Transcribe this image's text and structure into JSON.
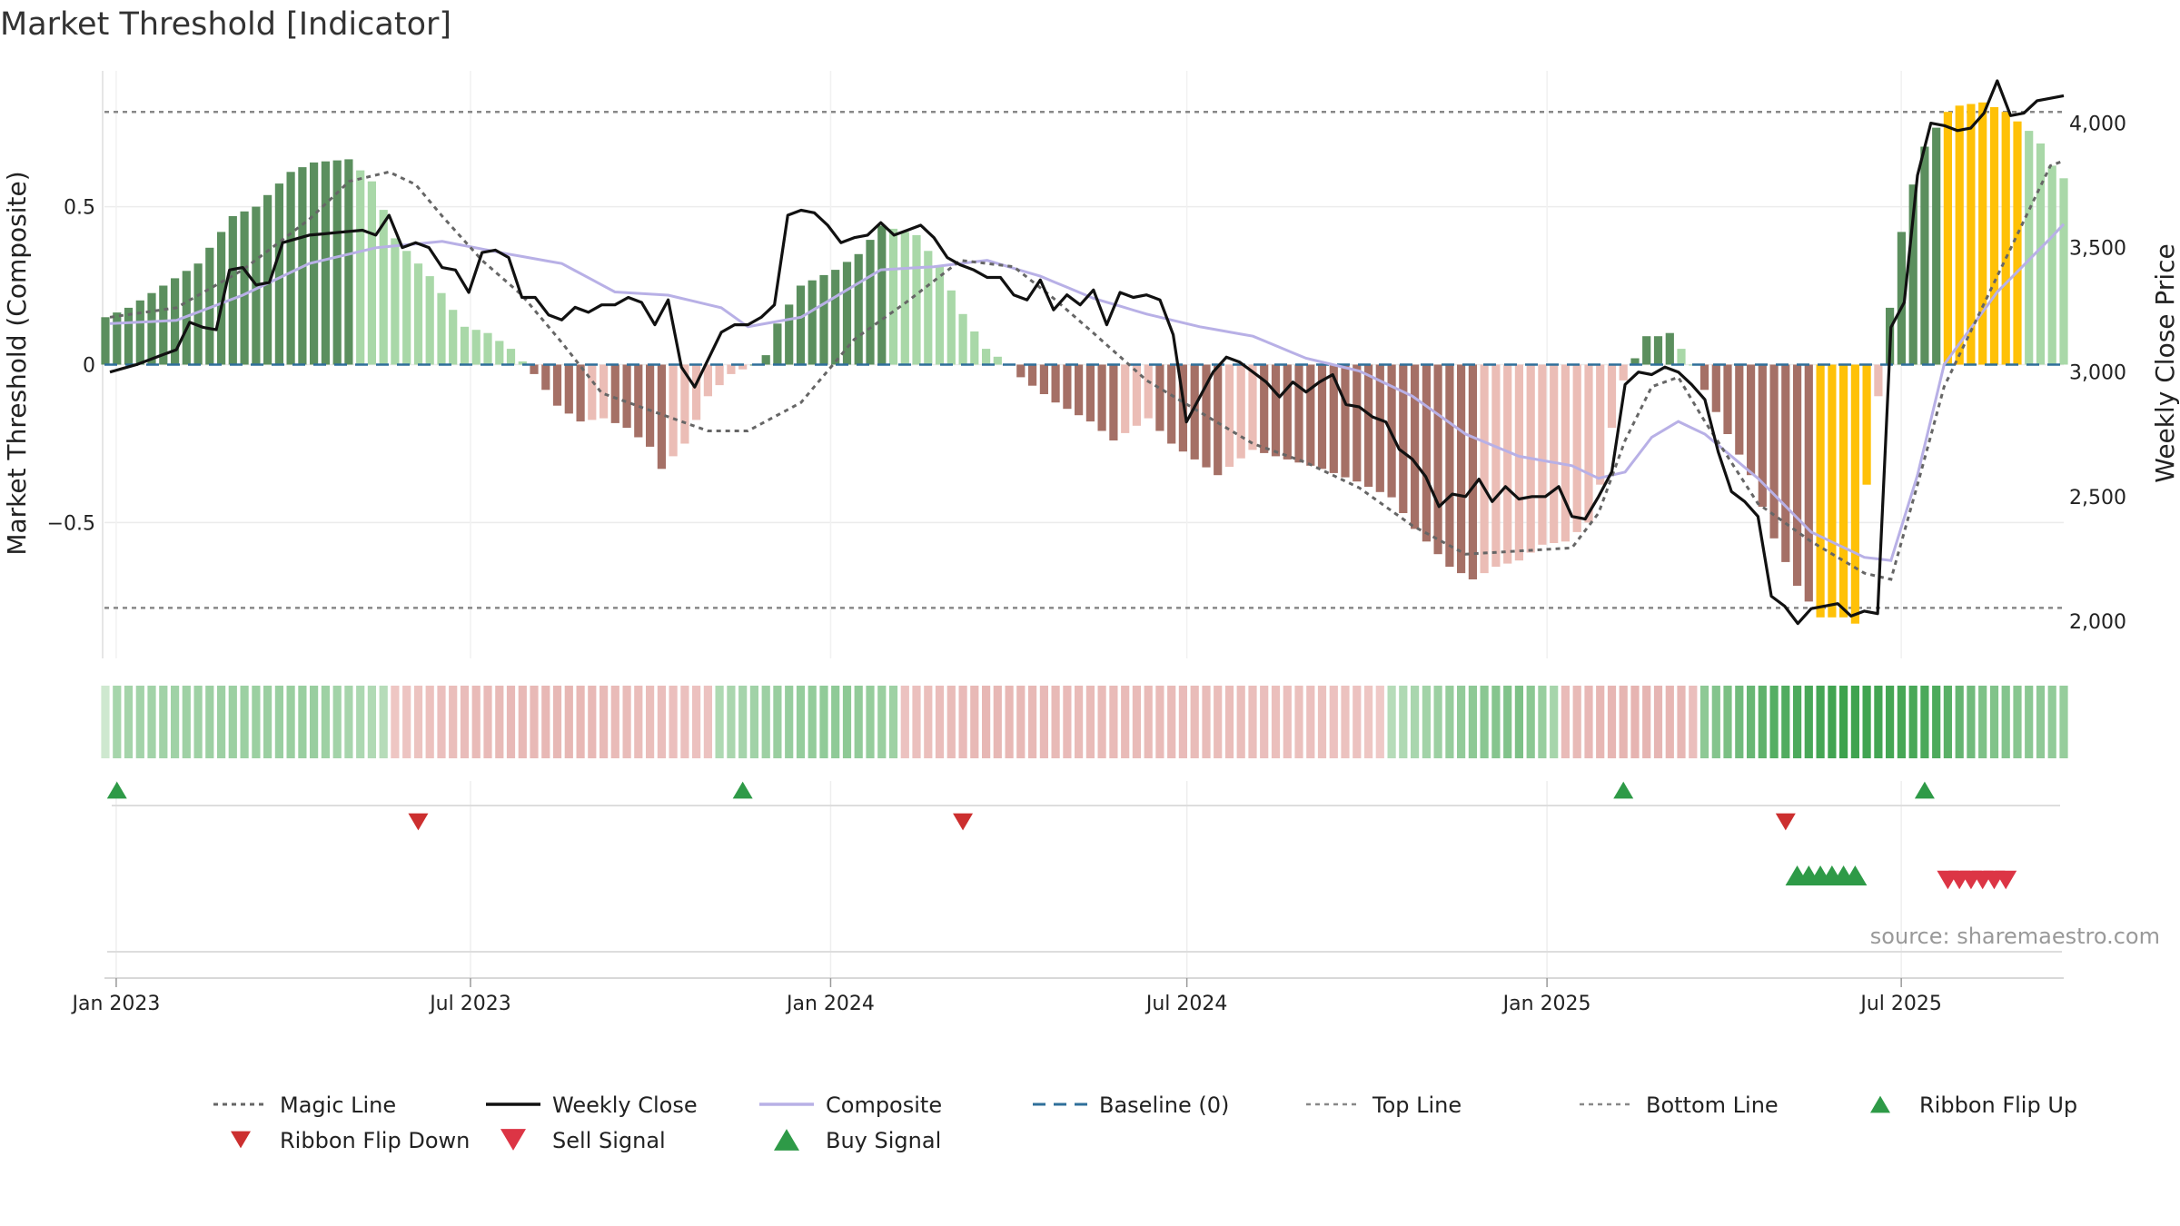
{
  "chart_data": {
    "type": "bar",
    "title": "Market Threshold [Indicator]",
    "ylabel_left": "Market Threshold (Composite)",
    "ylabel_right": "Weekly Close Price",
    "source": "source: sharemaestro.com",
    "ylim_left": [
      -0.93,
      0.93
    ],
    "ylim_right": [
      1850,
      4210
    ],
    "y_ticks_left": [
      {
        "v": 0.5,
        "label": "0.5"
      },
      {
        "v": 0,
        "label": "0"
      },
      {
        "v": -0.5,
        "label": "−0.5"
      }
    ],
    "y_ticks_right": [
      {
        "v": 4000,
        "label": "4,000"
      },
      {
        "v": 3500,
        "label": "3,500"
      },
      {
        "v": 3000,
        "label": "3,000"
      },
      {
        "v": 2500,
        "label": "2,500"
      },
      {
        "v": 2000,
        "label": "2,000"
      }
    ],
    "x_start": "2022-12-26",
    "x_end": "2025-09-22",
    "x_ticks": [
      {
        "date": "2023-01-01",
        "label": "Jan 2023"
      },
      {
        "date": "2023-07-01",
        "label": "Jul 2023"
      },
      {
        "date": "2024-01-01",
        "label": "Jan 2024"
      },
      {
        "date": "2024-07-01",
        "label": "Jul 2024"
      },
      {
        "date": "2025-01-01",
        "label": "Jan 2025"
      },
      {
        "date": "2025-07-01",
        "label": "Jul 2025"
      }
    ],
    "grid": true,
    "legend_position": "bottom",
    "top_line": 0.8,
    "bottom_line": -0.77,
    "baseline": 0,
    "bar_keypoints": [
      [
        0,
        0.15
      ],
      [
        2,
        0.18
      ],
      [
        5,
        0.25
      ],
      [
        8,
        0.32
      ],
      [
        11,
        0.47
      ],
      [
        13,
        0.5
      ],
      [
        16,
        0.61
      ],
      [
        18,
        0.64
      ],
      [
        21,
        0.65
      ],
      [
        23,
        0.58
      ],
      [
        25,
        0.4
      ],
      [
        28,
        0.28
      ],
      [
        31,
        0.12
      ],
      [
        33,
        0.1
      ],
      [
        35,
        0.05
      ],
      [
        36,
        0.01
      ],
      [
        37,
        -0.03
      ],
      [
        39,
        -0.13
      ],
      [
        41,
        -0.18
      ],
      [
        43,
        -0.17
      ],
      [
        45,
        -0.2
      ],
      [
        47,
        -0.26
      ],
      [
        48,
        -0.33
      ],
      [
        50,
        -0.25
      ],
      [
        52,
        -0.1
      ],
      [
        54,
        -0.03
      ],
      [
        56,
        0.0
      ],
      [
        57,
        0.03
      ],
      [
        58,
        0.13
      ],
      [
        60,
        0.25
      ],
      [
        63,
        0.3
      ],
      [
        65,
        0.35
      ],
      [
        67,
        0.44
      ],
      [
        70,
        0.41
      ],
      [
        72,
        0.31
      ],
      [
        74,
        0.16
      ],
      [
        76,
        0.05
      ],
      [
        78,
        0.0
      ],
      [
        79,
        -0.04
      ],
      [
        82,
        -0.12
      ],
      [
        85,
        -0.18
      ],
      [
        87,
        -0.24
      ],
      [
        90,
        -0.17
      ],
      [
        92,
        -0.25
      ],
      [
        94,
        -0.3
      ],
      [
        96,
        -0.35
      ],
      [
        99,
        -0.27
      ],
      [
        102,
        -0.3
      ],
      [
        105,
        -0.33
      ],
      [
        108,
        -0.37
      ],
      [
        111,
        -0.42
      ],
      [
        113,
        -0.52
      ],
      [
        116,
        -0.64
      ],
      [
        118,
        -0.68
      ],
      [
        120,
        -0.64
      ],
      [
        122,
        -0.62
      ],
      [
        124,
        -0.57
      ],
      [
        126,
        -0.56
      ],
      [
        128,
        -0.5
      ],
      [
        129,
        -0.38
      ],
      [
        130,
        -0.2
      ],
      [
        131,
        -0.05
      ],
      [
        132,
        0.02
      ],
      [
        133,
        0.09
      ],
      [
        134,
        0.09
      ],
      [
        135,
        0.1
      ],
      [
        136,
        0.05
      ],
      [
        137,
        0.0
      ],
      [
        138,
        -0.08
      ],
      [
        140,
        -0.22
      ],
      [
        142,
        -0.35
      ],
      [
        144,
        -0.55
      ],
      [
        146,
        -0.7
      ],
      [
        148,
        -0.8
      ],
      [
        150,
        -0.8
      ],
      [
        151,
        -0.82
      ],
      [
        152,
        -0.38
      ],
      [
        153,
        -0.1
      ],
      [
        154,
        0.18
      ],
      [
        155,
        0.42
      ],
      [
        156,
        0.57
      ],
      [
        157,
        0.69
      ],
      [
        158,
        0.75
      ],
      [
        159,
        0.8
      ],
      [
        160,
        0.82
      ],
      [
        162,
        0.83
      ],
      [
        164,
        0.8
      ],
      [
        166,
        0.74
      ],
      [
        167,
        0.7
      ],
      [
        168,
        0.63
      ],
      [
        169,
        0.59
      ]
    ],
    "close_keypoints": [
      [
        0,
        3000
      ],
      [
        2,
        3030
      ],
      [
        4,
        3070
      ],
      [
        5,
        3090
      ],
      [
        6,
        3200
      ],
      [
        7,
        3180
      ],
      [
        8,
        3170
      ],
      [
        9,
        3410
      ],
      [
        10,
        3420
      ],
      [
        11,
        3350
      ],
      [
        12,
        3360
      ],
      [
        13,
        3520
      ],
      [
        15,
        3550
      ],
      [
        17,
        3560
      ],
      [
        19,
        3570
      ],
      [
        20,
        3550
      ],
      [
        21,
        3630
      ],
      [
        22,
        3500
      ],
      [
        23,
        3520
      ],
      [
        24,
        3500
      ],
      [
        25,
        3420
      ],
      [
        26,
        3410
      ],
      [
        27,
        3320
      ],
      [
        28,
        3480
      ],
      [
        29,
        3490
      ],
      [
        30,
        3460
      ],
      [
        31,
        3300
      ],
      [
        32,
        3300
      ],
      [
        33,
        3230
      ],
      [
        34,
        3210
      ],
      [
        35,
        3260
      ],
      [
        36,
        3240
      ],
      [
        37,
        3270
      ],
      [
        38,
        3270
      ],
      [
        39,
        3300
      ],
      [
        40,
        3280
      ],
      [
        41,
        3190
      ],
      [
        42,
        3290
      ],
      [
        43,
        3020
      ],
      [
        44,
        2940
      ],
      [
        45,
        3050
      ],
      [
        46,
        3160
      ],
      [
        47,
        3190
      ],
      [
        48,
        3190
      ],
      [
        49,
        3220
      ],
      [
        50,
        3270
      ],
      [
        51,
        3630
      ],
      [
        52,
        3650
      ],
      [
        53,
        3640
      ],
      [
        54,
        3590
      ],
      [
        55,
        3520
      ],
      [
        56,
        3540
      ],
      [
        57,
        3550
      ],
      [
        58,
        3600
      ],
      [
        59,
        3550
      ],
      [
        60,
        3570
      ],
      [
        61,
        3590
      ],
      [
        62,
        3540
      ],
      [
        63,
        3460
      ],
      [
        64,
        3430
      ],
      [
        65,
        3410
      ],
      [
        66,
        3380
      ],
      [
        67,
        3380
      ],
      [
        68,
        3310
      ],
      [
        69,
        3290
      ],
      [
        70,
        3370
      ],
      [
        71,
        3250
      ],
      [
        72,
        3310
      ],
      [
        73,
        3270
      ],
      [
        74,
        3330
      ],
      [
        75,
        3190
      ],
      [
        76,
        3320
      ],
      [
        77,
        3300
      ],
      [
        78,
        3310
      ],
      [
        79,
        3290
      ],
      [
        80,
        3150
      ],
      [
        81,
        2800
      ],
      [
        82,
        2900
      ],
      [
        83,
        3000
      ],
      [
        84,
        3060
      ],
      [
        85,
        3040
      ],
      [
        86,
        3000
      ],
      [
        87,
        2960
      ],
      [
        88,
        2900
      ],
      [
        89,
        2960
      ],
      [
        90,
        2920
      ],
      [
        91,
        2960
      ],
      [
        92,
        2990
      ],
      [
        93,
        2870
      ],
      [
        94,
        2860
      ],
      [
        95,
        2820
      ],
      [
        96,
        2800
      ],
      [
        97,
        2690
      ],
      [
        98,
        2650
      ],
      [
        99,
        2580
      ],
      [
        100,
        2460
      ],
      [
        101,
        2510
      ],
      [
        102,
        2500
      ],
      [
        103,
        2570
      ],
      [
        104,
        2480
      ],
      [
        105,
        2540
      ],
      [
        106,
        2490
      ],
      [
        107,
        2500
      ],
      [
        108,
        2500
      ],
      [
        109,
        2540
      ],
      [
        110,
        2420
      ],
      [
        111,
        2410
      ],
      [
        112,
        2500
      ],
      [
        113,
        2600
      ],
      [
        114,
        2950
      ],
      [
        115,
        3000
      ],
      [
        116,
        2990
      ],
      [
        117,
        3020
      ],
      [
        118,
        3000
      ],
      [
        119,
        2950
      ],
      [
        120,
        2890
      ],
      [
        121,
        2680
      ],
      [
        122,
        2520
      ],
      [
        123,
        2480
      ],
      [
        124,
        2420
      ],
      [
        125,
        2100
      ],
      [
        126,
        2060
      ],
      [
        127,
        1990
      ],
      [
        128,
        2050
      ],
      [
        129,
        2060
      ],
      [
        130,
        2070
      ],
      [
        131,
        2020
      ],
      [
        132,
        2040
      ],
      [
        133,
        2030
      ],
      [
        134,
        3180
      ],
      [
        135,
        3280
      ],
      [
        136,
        3790
      ],
      [
        137,
        4000
      ],
      [
        138,
        3990
      ],
      [
        139,
        3970
      ],
      [
        140,
        3980
      ],
      [
        141,
        4040
      ],
      [
        142,
        4170
      ],
      [
        143,
        4030
      ],
      [
        144,
        4040
      ],
      [
        145,
        4090
      ],
      [
        146,
        4100
      ],
      [
        147,
        4110
      ]
    ],
    "composite_keypoints": [
      [
        0,
        0.13
      ],
      [
        5,
        0.14
      ],
      [
        10,
        0.22
      ],
      [
        15,
        0.32
      ],
      [
        20,
        0.37
      ],
      [
        25,
        0.39
      ],
      [
        30,
        0.35
      ],
      [
        34,
        0.32
      ],
      [
        38,
        0.23
      ],
      [
        42,
        0.22
      ],
      [
        46,
        0.18
      ],
      [
        48,
        0.12
      ],
      [
        52,
        0.15
      ],
      [
        56,
        0.25
      ],
      [
        58,
        0.3
      ],
      [
        62,
        0.31
      ],
      [
        66,
        0.33
      ],
      [
        70,
        0.28
      ],
      [
        74,
        0.21
      ],
      [
        78,
        0.16
      ],
      [
        82,
        0.12
      ],
      [
        86,
        0.09
      ],
      [
        90,
        0.02
      ],
      [
        94,
        -0.02
      ],
      [
        98,
        -0.1
      ],
      [
        102,
        -0.22
      ],
      [
        106,
        -0.29
      ],
      [
        110,
        -0.32
      ],
      [
        112,
        -0.36
      ],
      [
        114,
        -0.34
      ],
      [
        116,
        -0.23
      ],
      [
        118,
        -0.18
      ],
      [
        120,
        -0.22
      ],
      [
        124,
        -0.36
      ],
      [
        128,
        -0.53
      ],
      [
        132,
        -0.61
      ],
      [
        134,
        -0.62
      ],
      [
        136,
        -0.35
      ],
      [
        138,
        0.0
      ],
      [
        142,
        0.23
      ],
      [
        146,
        0.4
      ],
      [
        148,
        0.49
      ]
    ],
    "magic_keypoints": [
      [
        0,
        0.15
      ],
      [
        5,
        0.18
      ],
      [
        10,
        0.3
      ],
      [
        15,
        0.46
      ],
      [
        18,
        0.58
      ],
      [
        21,
        0.61
      ],
      [
        23,
        0.57
      ],
      [
        25,
        0.47
      ],
      [
        28,
        0.33
      ],
      [
        31,
        0.22
      ],
      [
        34,
        0.07
      ],
      [
        37,
        -0.09
      ],
      [
        41,
        -0.15
      ],
      [
        45,
        -0.21
      ],
      [
        48,
        -0.21
      ],
      [
        52,
        -0.12
      ],
      [
        56,
        0.08
      ],
      [
        60,
        0.2
      ],
      [
        64,
        0.33
      ],
      [
        68,
        0.31
      ],
      [
        71,
        0.21
      ],
      [
        74,
        0.1
      ],
      [
        78,
        -0.05
      ],
      [
        82,
        -0.15
      ],
      [
        86,
        -0.25
      ],
      [
        90,
        -0.31
      ],
      [
        94,
        -0.39
      ],
      [
        98,
        -0.51
      ],
      [
        102,
        -0.6
      ],
      [
        106,
        -0.59
      ],
      [
        110,
        -0.58
      ],
      [
        112,
        -0.47
      ],
      [
        114,
        -0.24
      ],
      [
        116,
        -0.07
      ],
      [
        118,
        -0.04
      ],
      [
        120,
        -0.18
      ],
      [
        124,
        -0.44
      ],
      [
        128,
        -0.56
      ],
      [
        132,
        -0.66
      ],
      [
        134,
        -0.68
      ],
      [
        136,
        -0.38
      ],
      [
        138,
        -0.07
      ],
      [
        142,
        0.28
      ],
      [
        146,
        0.63
      ],
      [
        148,
        0.66
      ]
    ],
    "highlight_bar_ranges": [
      [
        148,
        152
      ],
      [
        159,
        165
      ]
    ],
    "ribbon_keypoints": [
      [
        0,
        0.05
      ],
      [
        1,
        0.3
      ],
      [
        8,
        0.35
      ],
      [
        18,
        0.38
      ],
      [
        24,
        0.2
      ],
      [
        25,
        -0.2
      ],
      [
        32,
        -0.35
      ],
      [
        40,
        -0.4
      ],
      [
        48,
        -0.3
      ],
      [
        52,
        -0.25
      ],
      [
        53,
        0.25
      ],
      [
        58,
        0.38
      ],
      [
        64,
        0.45
      ],
      [
        68,
        0.35
      ],
      [
        69,
        -0.25
      ],
      [
        76,
        -0.4
      ],
      [
        84,
        -0.35
      ],
      [
        92,
        -0.35
      ],
      [
        100,
        -0.3
      ],
      [
        108,
        -0.25
      ],
      [
        110,
        -0.15
      ],
      [
        111,
        0.2
      ],
      [
        116,
        0.4
      ],
      [
        122,
        0.55
      ],
      [
        125,
        0.3
      ],
      [
        126,
        -0.35
      ],
      [
        132,
        -0.45
      ],
      [
        136,
        -0.4
      ],
      [
        137,
        -0.3
      ],
      [
        138,
        0.45
      ],
      [
        144,
        0.8
      ],
      [
        150,
        0.95
      ],
      [
        158,
        0.85
      ],
      [
        162,
        0.55
      ],
      [
        169,
        0.4
      ]
    ],
    "ribbon_flip_up": [
      1,
      55,
      131,
      157
    ],
    "ribbon_flip_down": [
      27,
      74,
      145
    ],
    "buy_signals": [
      146,
      147,
      148,
      149,
      150,
      151
    ],
    "sell_signals": [
      159,
      160,
      161,
      162,
      163,
      164
    ],
    "legend": [
      {
        "label": "Magic Line"
      },
      {
        "label": "Weekly Close"
      },
      {
        "label": "Composite"
      },
      {
        "label": "Baseline (0)"
      },
      {
        "label": "Top Line"
      },
      {
        "label": "Bottom Line"
      },
      {
        "label": "Ribbon Flip Up"
      },
      {
        "label": "Ribbon Flip Down"
      },
      {
        "label": "Sell Signal"
      },
      {
        "label": "Buy Signal"
      }
    ],
    "colors": {
      "bull_dark": "#5b8f5e",
      "bull_light": "#a9d8a8",
      "bear_dark": "#a57066",
      "bear_light": "#ebbdb6",
      "highlight": "#ffc107",
      "close_line": "#111111",
      "composite_line": "#b8b0e6",
      "magic_line": "#666666",
      "baseline": "#2f6f9a",
      "ref_lines": "#888888",
      "buy_green": "#2e9a47",
      "sell_red": "#dc3545",
      "flip_down_red": "#cc2f2f"
    }
  }
}
